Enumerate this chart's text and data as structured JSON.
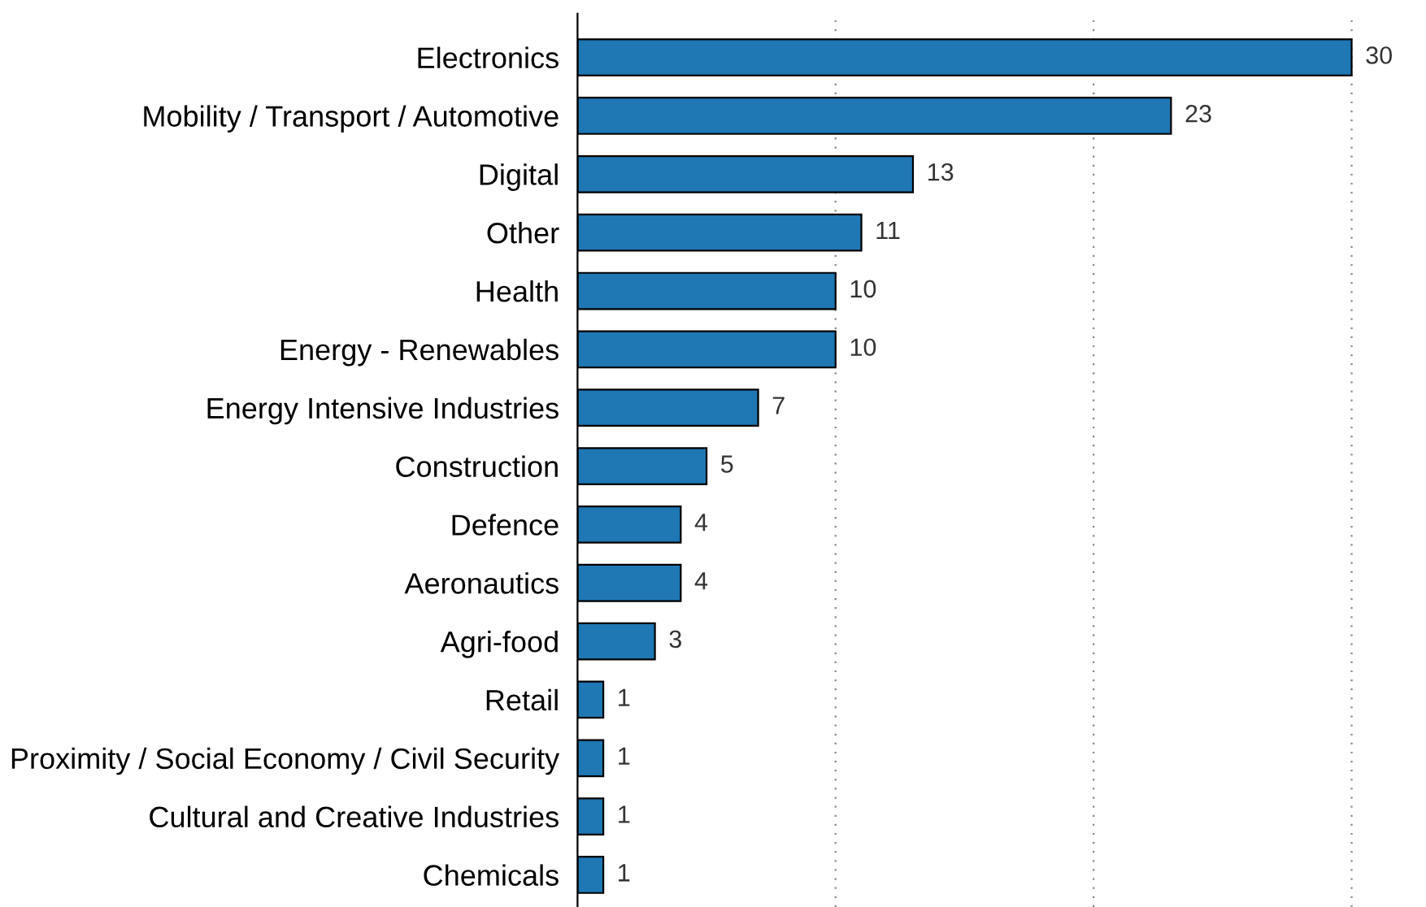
{
  "chart_data": {
    "type": "bar",
    "orientation": "horizontal",
    "categories": [
      "Electronics",
      "Mobility / Transport / Automotive",
      "Digital",
      "Other",
      "Health",
      "Energy - Renewables",
      "Energy Intensive Industries",
      "Construction",
      "Defence",
      "Aeronautics",
      "Agri-food",
      "Retail",
      "Proximity / Social Economy / Civil Security",
      "Cultural and Creative Industries",
      "Chemicals"
    ],
    "values": [
      30,
      23,
      13,
      11,
      10,
      10,
      7,
      5,
      4,
      4,
      3,
      1,
      1,
      1,
      1
    ],
    "color": "#1f77b4",
    "data_labels": true,
    "ref_lines": [
      {
        "axis": "x",
        "value": 10,
        "color": "#888888",
        "line_style": "dotted"
      },
      {
        "axis": "x",
        "value": 20,
        "color": "#888888",
        "line_style": "dotted"
      },
      {
        "axis": "x",
        "value": 30,
        "color": "#888888",
        "line_style": "dotted"
      }
    ],
    "tick_labels": "y",
    "legend": false
  }
}
